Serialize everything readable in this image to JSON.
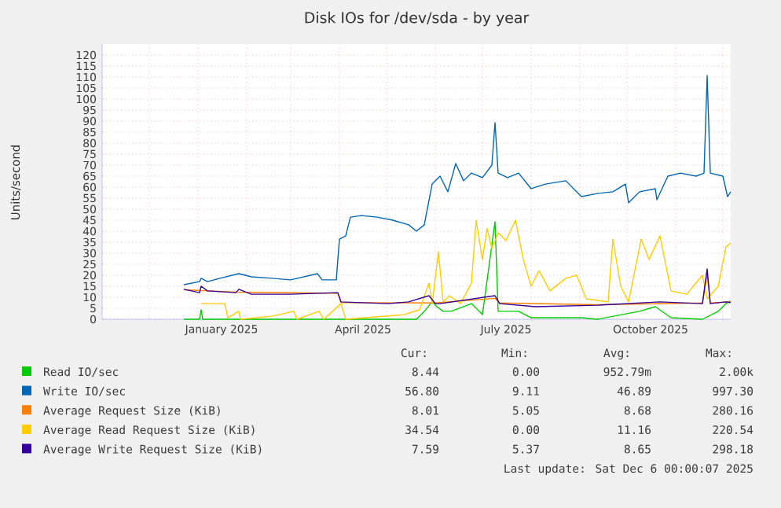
{
  "chart_data": {
    "type": "line",
    "title": "Disk IOs for /dev/sda - by year",
    "ylabel": "Units/second",
    "xlim": [
      "2024-11-01",
      "2025-12-06"
    ],
    "ylim": [
      0,
      125
    ],
    "xticks": [
      {
        "value": "2024-12-01",
        "label": null
      },
      {
        "value": "2025-01-01",
        "label": null
      },
      {
        "value": "2025-02-01",
        "label": null
      },
      {
        "value": "2025-03-01",
        "label": null
      },
      {
        "value": "2025-04-01",
        "label": null
      },
      {
        "value": "2025-05-01",
        "label": null
      },
      {
        "value": "2025-06-01",
        "label": null
      },
      {
        "value": "2025-07-01",
        "label": null
      },
      {
        "value": "2025-08-01",
        "label": null
      },
      {
        "value": "2025-09-01",
        "label": null
      },
      {
        "value": "2025-10-01",
        "label": null
      },
      {
        "value": "2025-11-01",
        "label": null
      },
      {
        "value": "2025-12-01",
        "label": null
      },
      {
        "value": "2025-01-16",
        "label": "January 2025"
      },
      {
        "value": "2025-04-16",
        "label": "April 2025"
      },
      {
        "value": "2025-07-16",
        "label": "July 2025"
      },
      {
        "value": "2025-10-16",
        "label": "October 2025"
      }
    ],
    "yticks": [
      0,
      5,
      10,
      15,
      20,
      25,
      30,
      35,
      40,
      45,
      50,
      55,
      60,
      65,
      70,
      75,
      80,
      85,
      90,
      95,
      100,
      105,
      110,
      115,
      120
    ],
    "grid": true,
    "legend": "bottom",
    "series": [
      {
        "name": "Read IO/sec",
        "color": "#00cc00",
        "x": [
          "2024-12-23",
          "2025-01-02",
          "2025-01-03",
          "2025-01-04",
          "2025-05-20",
          "2025-05-25",
          "2025-05-30",
          "2025-06-02",
          "2025-06-06",
          "2025-06-11",
          "2025-06-24",
          "2025-07-01",
          "2025-07-09",
          "2025-07-11",
          "2025-07-24",
          "2025-08-01",
          "2025-09-02",
          "2025-09-12",
          "2025-10-09",
          "2025-10-19",
          "2025-10-29",
          "2025-11-18",
          "2025-11-28",
          "2025-12-03",
          "2025-12-06"
        ],
        "values": [
          0,
          0,
          4.3,
          0,
          0,
          3.6,
          7.9,
          5.7,
          3.6,
          3.6,
          7.1,
          2.1,
          44.3,
          3.6,
          3.6,
          0.7,
          0.7,
          0,
          3.6,
          5.7,
          0.7,
          0,
          3.6,
          7.1,
          8.4
        ]
      },
      {
        "name": "Write IO/sec",
        "color": "#0066b3",
        "x": [
          "2024-12-23",
          "2025-01-02",
          "2025-01-03",
          "2025-01-07",
          "2025-01-15",
          "2025-01-27",
          "2025-02-04",
          "2025-02-17",
          "2025-03-01",
          "2025-03-18",
          "2025-03-21",
          "2025-03-30",
          "2025-04-01",
          "2025-04-05",
          "2025-04-08",
          "2025-04-15",
          "2025-04-25",
          "2025-05-05",
          "2025-05-15",
          "2025-05-20",
          "2025-05-25",
          "2025-05-30",
          "2025-06-04",
          "2025-06-09",
          "2025-06-14",
          "2025-06-19",
          "2025-06-24",
          "2025-07-01",
          "2025-07-07",
          "2025-07-09",
          "2025-07-11",
          "2025-07-17",
          "2025-07-24",
          "2025-08-01",
          "2025-08-10",
          "2025-08-23",
          "2025-09-02",
          "2025-09-12",
          "2025-09-22",
          "2025-09-30",
          "2025-10-02",
          "2025-10-09",
          "2025-10-19",
          "2025-10-20",
          "2025-10-27",
          "2025-11-04",
          "2025-11-14",
          "2025-11-19",
          "2025-11-21",
          "2025-11-23",
          "2025-12-01",
          "2025-12-04",
          "2025-12-06"
        ],
        "values": [
          15.7,
          17.1,
          18.6,
          17.1,
          18.6,
          20.7,
          19.3,
          18.6,
          17.9,
          20.7,
          17.9,
          17.9,
          36.4,
          37.9,
          46.4,
          47.1,
          46.4,
          45,
          42.9,
          40,
          42.9,
          61.4,
          65,
          57.9,
          70.7,
          62.9,
          66.4,
          64.3,
          70,
          89.3,
          66.4,
          64.3,
          66.4,
          59.3,
          61.4,
          62.9,
          55.7,
          57.1,
          57.9,
          61.4,
          52.9,
          57.9,
          59.3,
          54.3,
          65,
          66.4,
          65,
          66.4,
          110.7,
          66.4,
          65,
          55.7,
          57.9
        ]
      },
      {
        "name": "Average Request Size (KiB)",
        "color": "#ff8000",
        "x": [
          "2024-12-23",
          "2025-01-25",
          "2025-03-31",
          "2025-04-02",
          "2025-06-01",
          "2025-07-09",
          "2025-07-12",
          "2025-09-12",
          "2025-11-18",
          "2025-11-21",
          "2025-11-23",
          "2025-12-06"
        ],
        "values": [
          13.4,
          12.3,
          11.8,
          7.6,
          7.4,
          9.5,
          7.4,
          6.6,
          7.4,
          20.5,
          7.4,
          8.0
        ]
      },
      {
        "name": "Average Read Request Size (KiB)",
        "color": "#ffcc00",
        "x": [
          "2025-01-03",
          "2025-01-18",
          "2025-01-20",
          "2025-01-27",
          "2025-01-28",
          "2025-02-17",
          "2025-03-03",
          "2025-03-05",
          "2025-03-19",
          "2025-03-22",
          "2025-04-02",
          "2025-04-05",
          "2025-05-12",
          "2025-05-22",
          "2025-05-28",
          "2025-05-30",
          "2025-06-03",
          "2025-06-06",
          "2025-06-10",
          "2025-06-17",
          "2025-06-24",
          "2025-06-27",
          "2025-07-01",
          "2025-07-04",
          "2025-07-07",
          "2025-07-11",
          "2025-07-16",
          "2025-07-22",
          "2025-07-27",
          "2025-08-01",
          "2025-08-06",
          "2025-08-13",
          "2025-08-23",
          "2025-08-30",
          "2025-09-05",
          "2025-09-19",
          "2025-09-22",
          "2025-09-27",
          "2025-10-02",
          "2025-10-10",
          "2025-10-15",
          "2025-10-22",
          "2025-10-29",
          "2025-11-08",
          "2025-11-18",
          "2025-11-21",
          "2025-11-28",
          "2025-12-03",
          "2025-12-06"
        ],
        "values": [
          7.1,
          7.1,
          0.7,
          3.6,
          0,
          1.4,
          3.6,
          0,
          3.6,
          0,
          7.1,
          0,
          2.1,
          4.3,
          16.4,
          7.1,
          30.7,
          7.9,
          10.7,
          7.1,
          16.4,
          45,
          27.1,
          41.4,
          32.1,
          39.3,
          35.7,
          45,
          27.1,
          15,
          22.1,
          12.9,
          18.6,
          20,
          9.3,
          7.9,
          36.4,
          15,
          7.9,
          36.4,
          27.1,
          37.9,
          12.9,
          11.4,
          20,
          9.3,
          15,
          32.9,
          34.5
        ]
      },
      {
        "name": "Average Write Request Size (KiB)",
        "color": "#330099",
        "x": [
          "2024-12-23",
          "2025-01-02",
          "2025-01-03",
          "2025-01-07",
          "2025-01-25",
          "2025-01-27",
          "2025-02-04",
          "2025-03-01",
          "2025-03-31",
          "2025-04-02",
          "2025-05-02",
          "2025-05-15",
          "2025-05-28",
          "2025-06-01",
          "2025-06-04",
          "2025-07-09",
          "2025-07-12",
          "2025-08-04",
          "2025-09-12",
          "2025-10-22",
          "2025-11-18",
          "2025-11-21",
          "2025-11-23",
          "2025-12-03",
          "2025-12-06"
        ],
        "values": [
          13.6,
          12.1,
          15,
          12.9,
          12.1,
          13.6,
          11.4,
          11.4,
          12.1,
          7.9,
          7.1,
          7.9,
          10.7,
          7.1,
          7.1,
          10.7,
          7.1,
          5.7,
          6.4,
          7.9,
          7.1,
          22.9,
          7.1,
          7.9,
          7.6
        ]
      }
    ],
    "annotations": [
      "Cur:",
      "Min:",
      "Avg:",
      "Max:",
      "8.44",
      "0.00",
      "952.79m",
      "2.00k",
      "56.80",
      "9.11",
      "46.89",
      "997.30",
      "8.01",
      "5.05",
      "8.68",
      "280.16",
      "34.54",
      "0.00",
      "11.16",
      "220.54",
      "7.59",
      "5.37",
      "8.65",
      "298.18",
      "Last update: Sat Dec 6 00:00:07 2025"
    ]
  }
}
